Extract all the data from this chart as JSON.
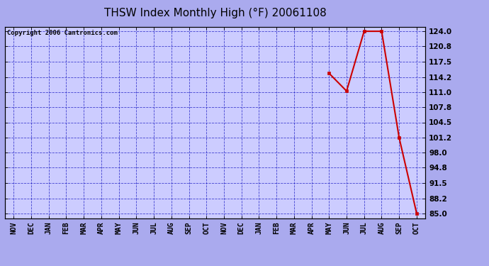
{
  "title": "THSW Index Monthly High (°F) 20061108",
  "copyright": "Copyright 2006 Cantronics.com",
  "x_labels": [
    "NOV",
    "DEC",
    "JAN",
    "FEB",
    "MAR",
    "APR",
    "MAY",
    "JUN",
    "JUL",
    "AUG",
    "SEP",
    "OCT",
    "NOV",
    "DEC",
    "JAN",
    "FEB",
    "MAR",
    "APR",
    "MAY",
    "JUN",
    "JUL",
    "AUG",
    "SEP",
    "OCT"
  ],
  "data_points_x": [
    18,
    19,
    20,
    21,
    22,
    23
  ],
  "data_points_y": [
    115.0,
    111.2,
    124.0,
    124.0,
    101.2,
    85.0
  ],
  "y_ticks": [
    85.0,
    88.2,
    91.5,
    94.8,
    98.0,
    101.2,
    104.5,
    107.8,
    111.0,
    114.2,
    117.5,
    120.8,
    124.0
  ],
  "y_min": 84.0,
  "y_max": 125.0,
  "line_color": "#cc0000",
  "marker_color": "#cc0000",
  "bg_color": "#aaaaee",
  "plot_bg_color": "#ccccff",
  "grid_color": "#3333cc",
  "border_color": "#000000",
  "title_color": "#000000",
  "copyright_color": "#000000",
  "title_fontsize": 11,
  "copyright_fontsize": 6.5,
  "tick_fontsize": 7,
  "ytick_fontsize": 7.5
}
